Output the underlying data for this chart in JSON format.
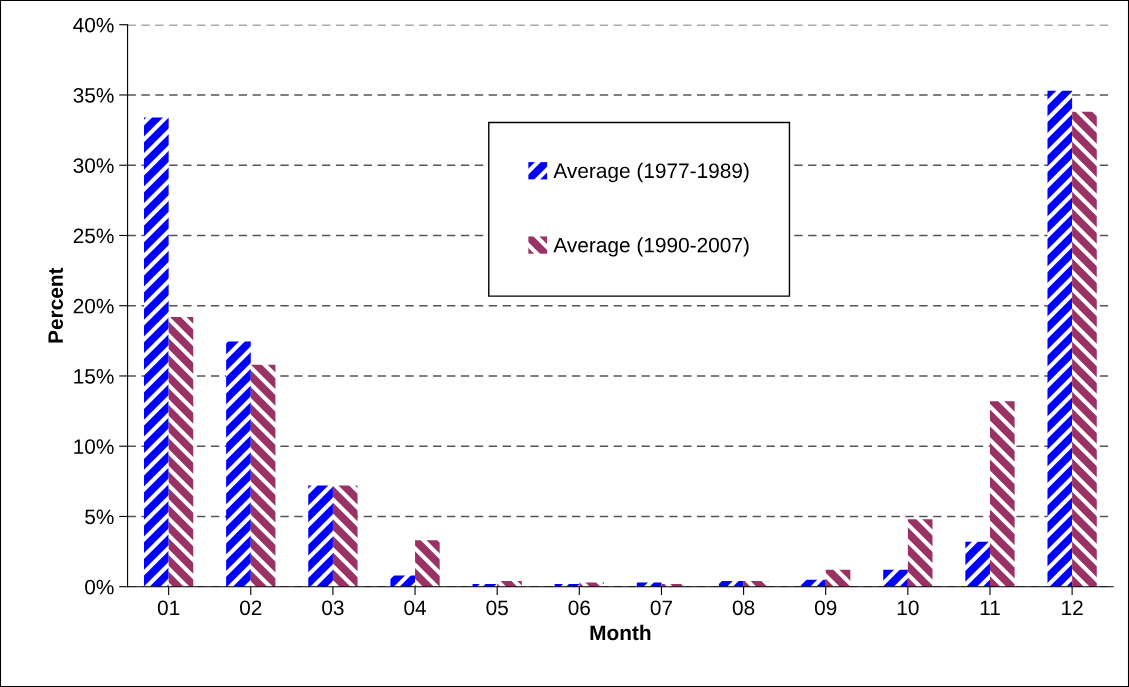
{
  "chart_data": {
    "type": "bar",
    "xlabel": "Month",
    "ylabel": "Percent",
    "categories": [
      "01",
      "02",
      "03",
      "04",
      "05",
      "06",
      "07",
      "08",
      "09",
      "10",
      "11",
      "12"
    ],
    "series": [
      {
        "name": "Average (1977-1989)",
        "color": "#0000ff",
        "values": [
          33.4,
          17.45,
          7.2,
          0.8,
          0.2,
          0.2,
          0.3,
          0.4,
          0.5,
          1.2,
          3.2,
          35.3
        ]
      },
      {
        "name": "Average (1990-2007)",
        "color": "#993366",
        "values": [
          19.2,
          15.8,
          7.2,
          3.3,
          0.4,
          0.3,
          0.2,
          0.4,
          1.2,
          4.8,
          13.2,
          33.8
        ]
      }
    ],
    "ylim": [
      0,
      40
    ],
    "yticks": [
      {
        "value": 0,
        "label": "0%"
      },
      {
        "value": 5,
        "label": "5%"
      },
      {
        "value": 10,
        "label": "10%"
      },
      {
        "value": 15,
        "label": "15%"
      },
      {
        "value": 20,
        "label": "20%"
      },
      {
        "value": 25,
        "label": "25%"
      },
      {
        "value": 30,
        "label": "30%"
      },
      {
        "value": 35,
        "label": "35%"
      },
      {
        "value": 40,
        "label": "40%"
      }
    ],
    "grid": "y",
    "legend": "top"
  }
}
